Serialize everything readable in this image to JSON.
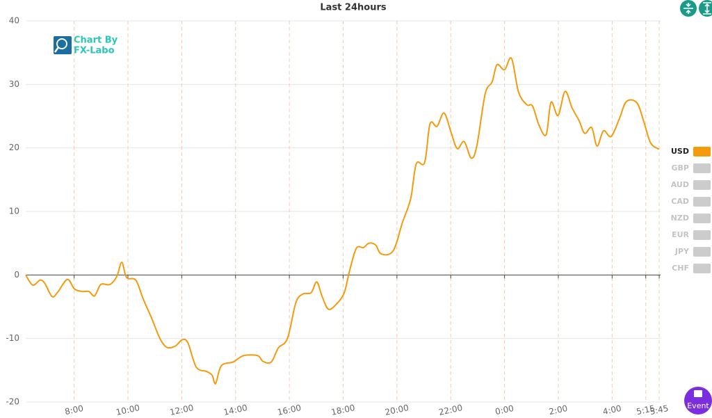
{
  "chart_data": {
    "type": "line",
    "title": "Last 24hours",
    "watermark": [
      "Chart By",
      "FX-Labo"
    ],
    "button": "Event",
    "x": [
      6.2,
      6.46,
      6.74,
      6.92,
      7.18,
      7.39,
      7.75,
      8.01,
      8.3,
      8.55,
      8.76,
      8.99,
      9.33,
      9.59,
      9.77,
      9.95,
      10.29,
      10.55,
      10.88,
      11.19,
      11.45,
      11.76,
      12.02,
      12.23,
      12.54,
      12.93,
      13.13,
      13.26,
      13.47,
      13.91,
      14.3,
      14.82,
      15.02,
      15.33,
      15.59,
      15.93,
      16.24,
      16.5,
      16.81,
      17.02,
      17.22,
      17.46,
      17.79,
      18.05,
      18.23,
      18.49,
      18.75,
      18.96,
      19.21,
      19.42,
      19.86,
      20.2,
      20.51,
      20.72,
      21.03,
      21.23,
      21.49,
      21.75,
      22.01,
      22.24,
      22.5,
      22.76,
      22.97,
      23.28,
      23.54,
      23.72,
      24.0,
      24.26,
      24.52,
      24.83,
      25.04,
      25.29,
      25.55,
      25.73,
      25.99,
      26.25,
      26.51,
      26.77,
      26.98,
      27.24,
      27.44,
      27.68,
      27.96,
      28.27,
      28.53,
      28.92,
      29.18,
      29.43,
      29.74
    ],
    "series": [
      {
        "name": "USD",
        "color": "#f59a0c",
        "values": [
          0,
          -1.6,
          -0.8,
          -1.4,
          -3.4,
          -2.7,
          -0.7,
          -2.2,
          -2.6,
          -2.6,
          -3.3,
          -1.5,
          -1.5,
          -0.2,
          2.0,
          -0.4,
          -0.8,
          -3.6,
          -6.8,
          -10.0,
          -11.4,
          -11.2,
          -10.2,
          -10.7,
          -14.5,
          -15.2,
          -15.8,
          -17.1,
          -14.3,
          -13.7,
          -12.7,
          -12.7,
          -13.6,
          -13.7,
          -11.5,
          -10.0,
          -4.4,
          -3.0,
          -2.8,
          -1.1,
          -3.4,
          -5.4,
          -4.4,
          -2.7,
          0.5,
          4.2,
          4.3,
          5.0,
          4.7,
          3.3,
          3.8,
          8.2,
          12.0,
          17.5,
          17.7,
          23.8,
          23.4,
          25.5,
          22.5,
          19.9,
          21.0,
          18.4,
          20.3,
          28.5,
          30.4,
          33.1,
          32.3,
          34.1,
          28.8,
          26.8,
          26.6,
          23.5,
          22.1,
          27.2,
          25.1,
          28.9,
          26.3,
          24.3,
          22.3,
          23.2,
          20.3,
          22.7,
          21.8,
          24.6,
          27.3,
          27.1,
          24.1,
          20.8,
          19.8
        ]
      }
    ],
    "hidden_series": [
      {
        "name": "GBP",
        "color": "#cccccc"
      },
      {
        "name": "AUD",
        "color": "#cccccc"
      },
      {
        "name": "CAD",
        "color": "#cccccc"
      },
      {
        "name": "NZD",
        "color": "#cccccc"
      },
      {
        "name": "EUR",
        "color": "#cccccc"
      },
      {
        "name": "JPY",
        "color": "#cccccc"
      },
      {
        "name": "CHF",
        "color": "#cccccc"
      }
    ],
    "xlim": [
      6.2,
      29.8
    ],
    "xticks": [
      {
        "value": 8,
        "label": "8:00"
      },
      {
        "value": 10,
        "label": "10:00"
      },
      {
        "value": 12,
        "label": "12:00"
      },
      {
        "value": 14,
        "label": "14:00"
      },
      {
        "value": 16,
        "label": "16:00"
      },
      {
        "value": 18,
        "label": "18:00"
      },
      {
        "value": 20,
        "label": "20:00"
      },
      {
        "value": 22,
        "label": "22:00"
      },
      {
        "value": 24,
        "label": "0:00"
      },
      {
        "value": 26,
        "label": "2:00"
      },
      {
        "value": 28,
        "label": "4:00"
      },
      {
        "value": 29.25,
        "label": "5:15"
      },
      {
        "value": 29.75,
        "label": "5:45"
      }
    ],
    "ylim": [
      -20,
      40
    ],
    "yticks": [
      -20,
      -10,
      0,
      10,
      20,
      30,
      40
    ],
    "grid": true
  }
}
